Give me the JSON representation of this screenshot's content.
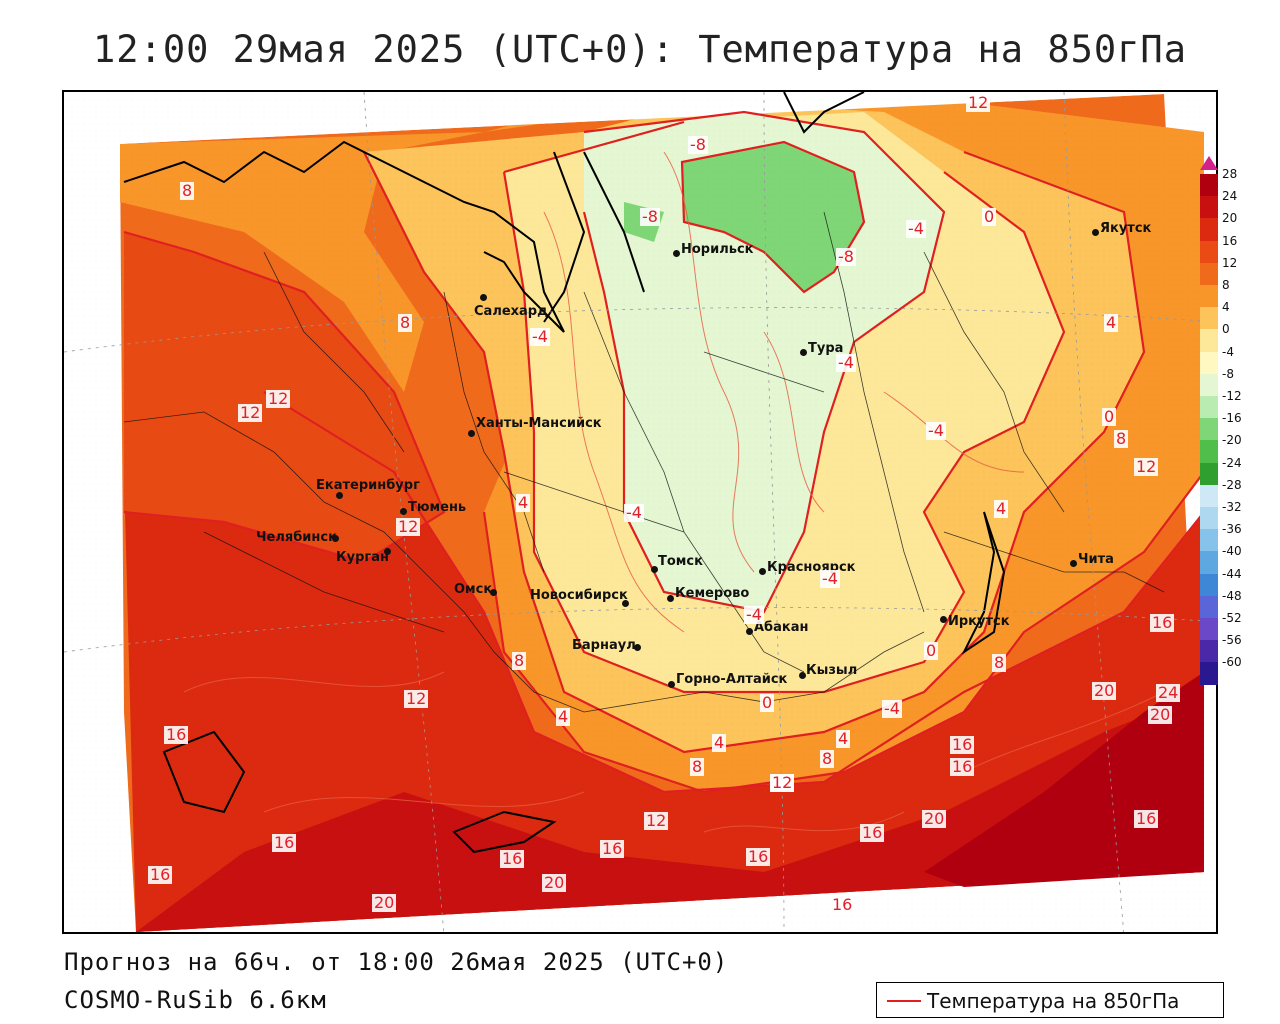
{
  "title": "12:00 29мая 2025 (UTC+0): Температура на 850гПа",
  "footer": {
    "forecast": "Прогноз на 66ч. от 18:00 26мая 2025 (UTC+0)",
    "model": "COSMO-RuSib 6.6км"
  },
  "key": {
    "label": "Температура на 850гПа",
    "color": "#e02020"
  },
  "cities": [
    {
      "name": "Норильск"
    },
    {
      "name": "Якутск"
    },
    {
      "name": "Салехард"
    },
    {
      "name": "Тура"
    },
    {
      "name": "Ханты-Мансийск"
    },
    {
      "name": "Екатеринбург"
    },
    {
      "name": "Тюмень"
    },
    {
      "name": "Челябинск"
    },
    {
      "name": "Курган"
    },
    {
      "name": "Омск"
    },
    {
      "name": "Новосибирск"
    },
    {
      "name": "Томск"
    },
    {
      "name": "Кемерово"
    },
    {
      "name": "Красноярск"
    },
    {
      "name": "Абакан"
    },
    {
      "name": "Барнаул"
    },
    {
      "name": "Горно-Алтайск"
    },
    {
      "name": "Кызыл"
    },
    {
      "name": "Иркутск"
    },
    {
      "name": "Чита"
    }
  ],
  "contour_labels": [
    "12",
    "-8",
    "-8",
    "0",
    "-4",
    "-8",
    "8",
    "8",
    "-4",
    "-4",
    "4",
    "12",
    "12",
    "0",
    "8",
    "-4",
    "12",
    "4",
    "12",
    "-4",
    "-4",
    "4",
    "-4",
    "0",
    "16",
    "12",
    "8",
    "4",
    "20",
    "24",
    "20",
    "16",
    "12",
    "16",
    "4",
    "8",
    "-4",
    "4",
    "0",
    "8",
    "12",
    "16",
    "8",
    "12",
    "20",
    "16",
    "16",
    "16",
    "16",
    "16",
    "16",
    "20",
    "16",
    "20",
    "16"
  ],
  "legend": {
    "ticks": [
      "28",
      "24",
      "20",
      "16",
      "12",
      "8",
      "4",
      "0",
      "-4",
      "-8",
      "-12",
      "-16",
      "-20",
      "-24",
      "-28",
      "-32",
      "-36",
      "-40",
      "-44",
      "-48",
      "-52",
      "-56",
      "-60"
    ],
    "colors": [
      "#b00010",
      "#c81010",
      "#dc2a10",
      "#ea4a14",
      "#f06a1c",
      "#f8962a",
      "#fcc45a",
      "#fde89a",
      "#fff8c0",
      "#e4f7d2",
      "#b9ecb0",
      "#7fd676",
      "#4fbe4a",
      "#2fa030",
      "#cfe8f6",
      "#aed8f0",
      "#86c2ea",
      "#5ea8e2",
      "#3e86d6",
      "#5a66d8",
      "#6a48c8",
      "#4a28a8",
      "#2a1890"
    ],
    "arrow_color": "#d4208a"
  }
}
